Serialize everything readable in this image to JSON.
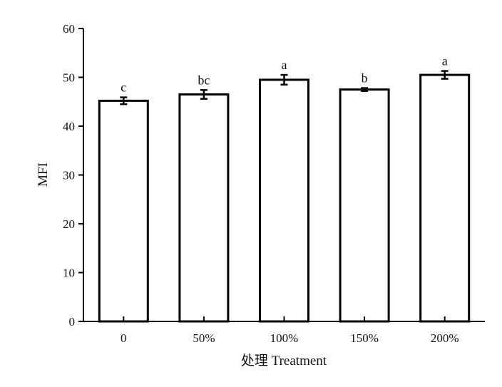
{
  "chart_data": {
    "type": "bar",
    "categories": [
      "0",
      "50%",
      "100%",
      "150%",
      "200%"
    ],
    "values": [
      45.2,
      46.5,
      49.5,
      47.5,
      50.5
    ],
    "errors": [
      0.7,
      0.9,
      1.0,
      0.3,
      0.8
    ],
    "significance_labels": [
      "c",
      "bc",
      "a",
      "b",
      "a"
    ],
    "title": "",
    "xlabel": "处理 Treatment",
    "ylabel": "MFI",
    "ylim": [
      0,
      60
    ],
    "yticks": [
      0,
      10,
      20,
      30,
      40,
      50,
      60
    ],
    "grid": false,
    "legend": "none",
    "bar_fill": "#ffffff",
    "bar_stroke": "#000000"
  }
}
